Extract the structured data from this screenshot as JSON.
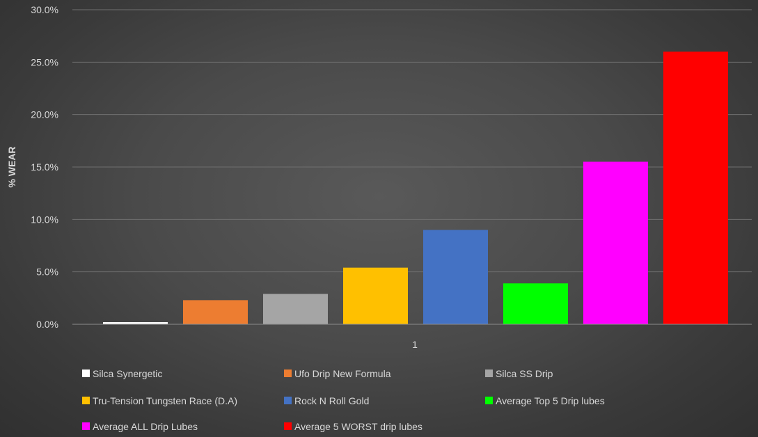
{
  "chart_data": {
    "type": "bar",
    "title": "",
    "xlabel": "",
    "ylabel": "% WEAR",
    "ylim": [
      0,
      30
    ],
    "yticks": [
      "0.0%",
      "5.0%",
      "10.0%",
      "15.0%",
      "20.0%",
      "25.0%",
      "30.0%"
    ],
    "categories": [
      "1"
    ],
    "grid": true,
    "legend_position": "bottom",
    "series": [
      {
        "name": "Silca Synergetic",
        "values": [
          0.2
        ],
        "color": "#ffffff"
      },
      {
        "name": "Ufo Drip New Formula",
        "values": [
          2.3
        ],
        "color": "#ed7d31"
      },
      {
        "name": "Silca SS Drip",
        "values": [
          2.9
        ],
        "color": "#a5a5a5"
      },
      {
        "name": "Tru-Tension Tungsten Race (D.A)",
        "values": [
          5.4
        ],
        "color": "#ffc000"
      },
      {
        "name": "Rock N Roll Gold",
        "values": [
          9.0
        ],
        "color": "#4472c4"
      },
      {
        "name": "Average Top 5 Drip lubes",
        "values": [
          3.9
        ],
        "color": "#00ff00"
      },
      {
        "name": "Average ALL Drip Lubes",
        "values": [
          15.5
        ],
        "color": "#ff00ff"
      },
      {
        "name": "Average 5 WORST drip lubes",
        "values": [
          26.0
        ],
        "color": "#ff0000"
      }
    ]
  }
}
